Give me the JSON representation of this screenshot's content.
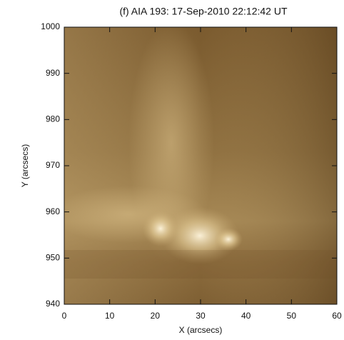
{
  "chart_data": {
    "type": "image",
    "title": "(f) AIA 193: 17-Sep-2010 22:12:42 UT",
    "x_label": "X (arcsecs)",
    "y_label": "Y (arcsecs)",
    "xlim": [
      0,
      60
    ],
    "xticks": [
      0,
      10,
      20,
      30,
      40,
      50,
      60
    ],
    "ylim": [
      940,
      1000
    ],
    "yticks": [
      940,
      950,
      960,
      970,
      980,
      990,
      1000
    ]
  }
}
